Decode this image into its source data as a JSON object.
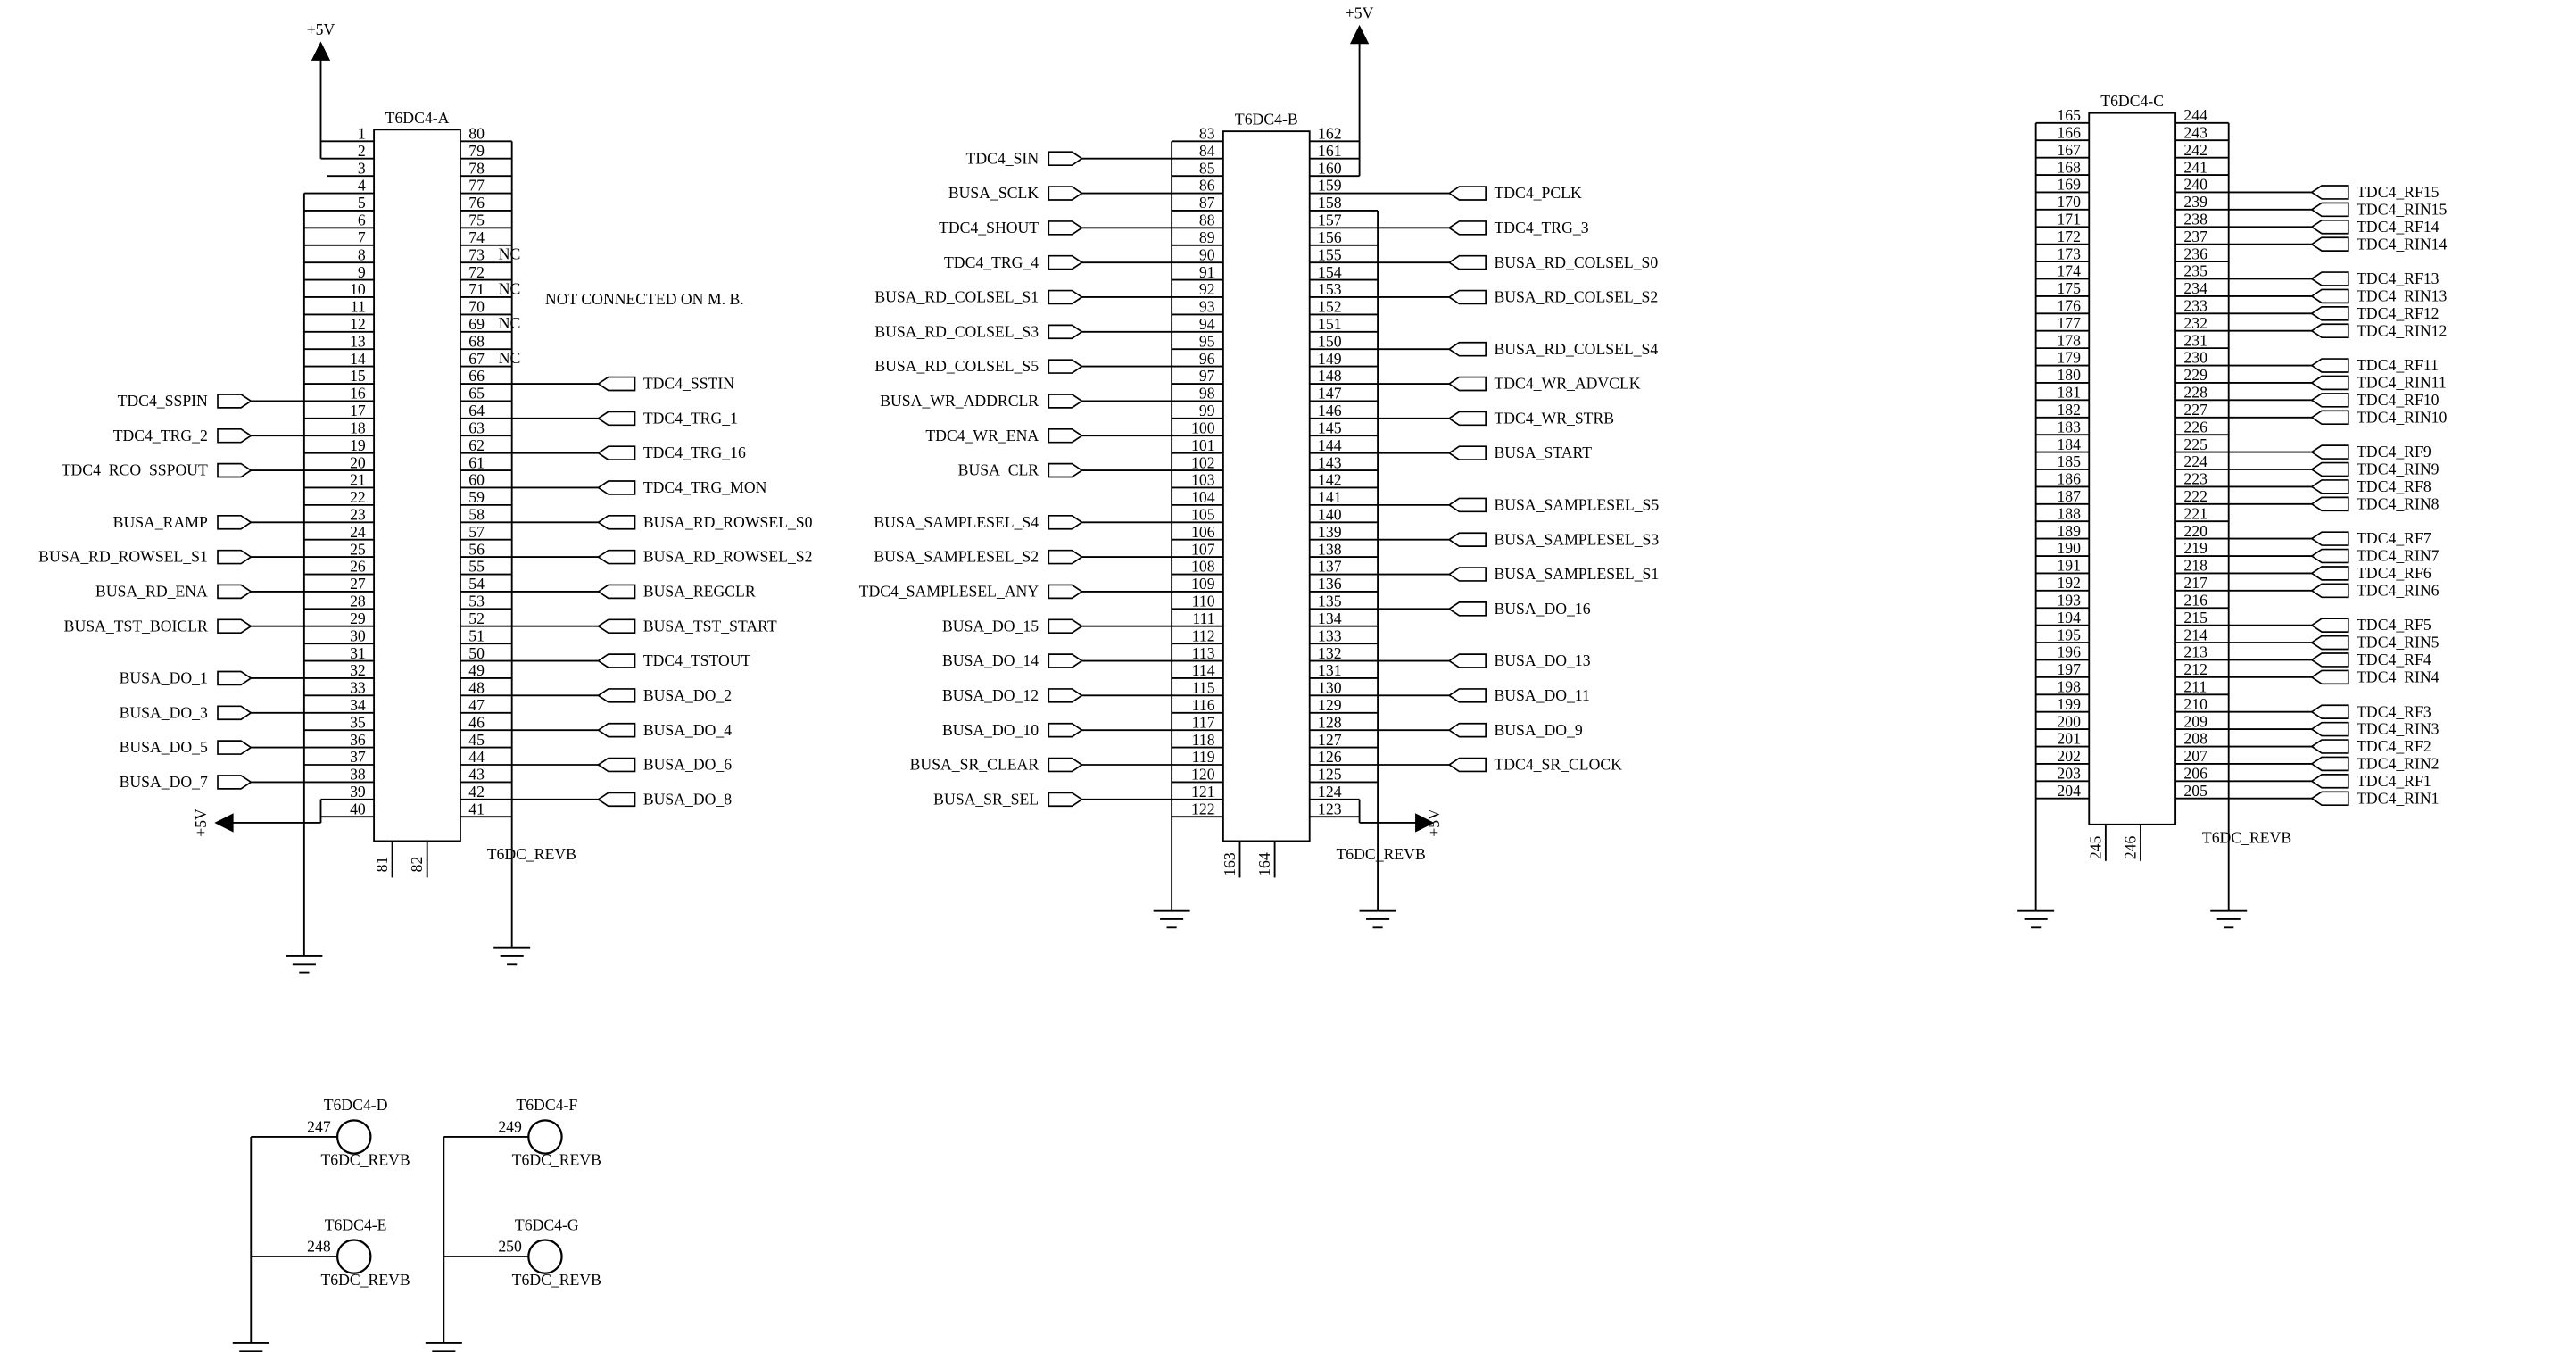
{
  "parts": [
    {
      "name": "T6DC4-A",
      "value": "T6DC_REVB",
      "left": [
        1,
        2,
        3,
        4,
        5,
        6,
        7,
        8,
        9,
        10,
        11,
        12,
        13,
        14,
        15,
        {
          "num": 16,
          "net": "TDC4_SSPIN"
        },
        17,
        {
          "num": 18,
          "net": "TDC4_TRG_2"
        },
        19,
        {
          "num": 20,
          "net": "TDC4_RCO_SSPOUT"
        },
        21,
        22,
        {
          "num": 23,
          "net": "BUSA_RAMP"
        },
        24,
        {
          "num": 25,
          "net": "BUSA_RD_ROWSEL_S1"
        },
        26,
        {
          "num": 27,
          "net": "BUSA_RD_ENA"
        },
        28,
        {
          "num": 29,
          "net": "BUSA_TST_BOICLR"
        },
        30,
        31,
        {
          "num": 32,
          "net": "BUSA_DO_1"
        },
        33,
        {
          "num": 34,
          "net": "BUSA_DO_3"
        },
        35,
        {
          "num": 36,
          "net": "BUSA_DO_5"
        },
        37,
        {
          "num": 38,
          "net": "BUSA_DO_7"
        },
        39,
        40
      ],
      "right": [
        80,
        79,
        78,
        77,
        76,
        75,
        74,
        73,
        72,
        71,
        70,
        69,
        68,
        67,
        {
          "num": 66,
          "net": "TDC4_SSTIN"
        },
        65,
        {
          "num": 64,
          "net": "TDC4_TRG_1"
        },
        63,
        {
          "num": 62,
          "net": "TDC4_TRG_16"
        },
        61,
        {
          "num": 60,
          "net": "TDC4_TRG_MON"
        },
        59,
        {
          "num": 58,
          "net": "BUSA_RD_ROWSEL_S0"
        },
        57,
        {
          "num": 56,
          "net": "BUSA_RD_ROWSEL_S2"
        },
        55,
        {
          "num": 54,
          "net": "BUSA_REGCLR"
        },
        53,
        {
          "num": 52,
          "net": "BUSA_TST_START"
        },
        51,
        {
          "num": 50,
          "net": "TDC4_TSTOUT"
        },
        49,
        {
          "num": 48,
          "net": "BUSA_DO_2"
        },
        47,
        {
          "num": 46,
          "net": "BUSA_DO_4"
        },
        45,
        {
          "num": 44,
          "net": "BUSA_DO_6"
        },
        43,
        {
          "num": 42,
          "net": "BUSA_DO_8"
        },
        41
      ],
      "bottom": [
        81,
        82
      ]
    },
    {
      "name": "T6DC4-B",
      "value": "T6DC_REVB",
      "left": [
        83,
        {
          "num": 84,
          "net": "TDC4_SIN"
        },
        85,
        {
          "num": 86,
          "net": "BUSA_SCLK"
        },
        87,
        {
          "num": 88,
          "net": "TDC4_SHOUT"
        },
        89,
        {
          "num": 90,
          "net": "TDC4_TRG_4"
        },
        91,
        {
          "num": 92,
          "net": "BUSA_RD_COLSEL_S1"
        },
        93,
        {
          "num": 94,
          "net": "BUSA_RD_COLSEL_S3"
        },
        95,
        {
          "num": 96,
          "net": "BUSA_RD_COLSEL_S5"
        },
        97,
        {
          "num": 98,
          "net": "BUSA_WR_ADDRCLR"
        },
        99,
        {
          "num": 100,
          "net": "TDC4_WR_ENA"
        },
        101,
        {
          "num": 102,
          "net": "BUSA_CLR"
        },
        103,
        104,
        {
          "num": 105,
          "net": "BUSA_SAMPLESEL_S4"
        },
        106,
        {
          "num": 107,
          "net": "BUSA_SAMPLESEL_S2"
        },
        108,
        {
          "num": 109,
          "net": "TDC4_SAMPLESEL_ANY"
        },
        110,
        {
          "num": 111,
          "net": "BUSA_DO_15"
        },
        112,
        {
          "num": 113,
          "net": "BUSA_DO_14"
        },
        114,
        {
          "num": 115,
          "net": "BUSA_DO_12"
        },
        116,
        {
          "num": 117,
          "net": "BUSA_DO_10"
        },
        118,
        {
          "num": 119,
          "net": "BUSA_SR_CLEAR"
        },
        120,
        {
          "num": 121,
          "net": "BUSA_SR_SEL"
        },
        122
      ],
      "right": [
        162,
        161,
        160,
        {
          "num": 159,
          "net": "TDC4_PCLK"
        },
        158,
        {
          "num": 157,
          "net": "TDC4_TRG_3"
        },
        156,
        {
          "num": 155,
          "net": "BUSA_RD_COLSEL_S0"
        },
        154,
        {
          "num": 153,
          "net": "BUSA_RD_COLSEL_S2"
        },
        152,
        151,
        {
          "num": 150,
          "net": "BUSA_RD_COLSEL_S4"
        },
        149,
        {
          "num": 148,
          "net": "TDC4_WR_ADVCLK"
        },
        147,
        {
          "num": 146,
          "net": "TDC4_WR_STRB"
        },
        145,
        {
          "num": 144,
          "net": "BUSA_START"
        },
        143,
        142,
        {
          "num": 141,
          "net": "BUSA_SAMPLESEL_S5"
        },
        140,
        {
          "num": 139,
          "net": "BUSA_SAMPLESEL_S3"
        },
        138,
        {
          "num": 137,
          "net": "BUSA_SAMPLESEL_S1"
        },
        136,
        {
          "num": 135,
          "net": "BUSA_DO_16"
        },
        134,
        133,
        {
          "num": 132,
          "net": "BUSA_DO_13"
        },
        131,
        {
          "num": 130,
          "net": "BUSA_DO_11"
        },
        129,
        {
          "num": 128,
          "net": "BUSA_DO_9"
        },
        127,
        {
          "num": 126,
          "net": "TDC4_SR_CLOCK"
        },
        125,
        124,
        123
      ],
      "bottom": [
        163,
        164
      ]
    },
    {
      "name": "T6DC4-C",
      "value": "T6DC_REVB",
      "left": [
        165,
        166,
        167,
        168,
        169,
        170,
        171,
        172,
        173,
        174,
        175,
        176,
        177,
        178,
        179,
        180,
        181,
        182,
        183,
        184,
        185,
        186,
        187,
        188,
        189,
        190,
        191,
        192,
        193,
        194,
        195,
        196,
        197,
        198,
        199,
        200,
        201,
        202,
        203,
        204
      ],
      "right": [
        244,
        243,
        242,
        241,
        {
          "num": 240,
          "net": "TDC4_RF15"
        },
        {
          "num": 239,
          "net": "TDC4_RIN15"
        },
        {
          "num": 238,
          "net": "TDC4_RF14"
        },
        {
          "num": 237,
          "net": "TDC4_RIN14"
        },
        236,
        {
          "num": 235,
          "net": "TDC4_RF13"
        },
        {
          "num": 234,
          "net": "TDC4_RIN13"
        },
        {
          "num": 233,
          "net": "TDC4_RF12"
        },
        {
          "num": 232,
          "net": "TDC4_RIN12"
        },
        231,
        {
          "num": 230,
          "net": "TDC4_RF11"
        },
        {
          "num": 229,
          "net": "TDC4_RIN11"
        },
        {
          "num": 228,
          "net": "TDC4_RF10"
        },
        {
          "num": 227,
          "net": "TDC4_RIN10"
        },
        226,
        {
          "num": 225,
          "net": "TDC4_RF9"
        },
        {
          "num": 224,
          "net": "TDC4_RIN9"
        },
        {
          "num": 223,
          "net": "TDC4_RF8"
        },
        {
          "num": 222,
          "net": "TDC4_RIN8"
        },
        221,
        {
          "num": 220,
          "net": "TDC4_RF7"
        },
        {
          "num": 219,
          "net": "TDC4_RIN7"
        },
        {
          "num": 218,
          "net": "TDC4_RF6"
        },
        {
          "num": 217,
          "net": "TDC4_RIN6"
        },
        216,
        {
          "num": 215,
          "net": "TDC4_RF5"
        },
        {
          "num": 214,
          "net": "TDC4_RIN5"
        },
        {
          "num": 213,
          "net": "TDC4_RF4"
        },
        {
          "num": 212,
          "net": "TDC4_RIN4"
        },
        211,
        {
          "num": 210,
          "net": "TDC4_RF3"
        },
        {
          "num": 209,
          "net": "TDC4_RIN3"
        },
        {
          "num": 208,
          "net": "TDC4_RF2"
        },
        {
          "num": 207,
          "net": "TDC4_RIN2"
        },
        {
          "num": 206,
          "net": "TDC4_RF1"
        },
        {
          "num": 205,
          "net": "TDC4_RIN1"
        }
      ],
      "bottom": [
        245,
        246
      ]
    }
  ],
  "small_parts": [
    {
      "name": "T6DC4-D",
      "pin": 247,
      "value": "T6DC_REVB"
    },
    {
      "name": "T6DC4-E",
      "pin": 248,
      "value": "T6DC_REVB"
    },
    {
      "name": "T6DC4-F",
      "pin": 249,
      "value": "T6DC_REVB"
    },
    {
      "name": "T6DC4-G",
      "pin": 250,
      "value": "T6DC_REVB"
    }
  ],
  "power": [
    "+5V",
    "+5V",
    "+5V",
    "+5V"
  ],
  "nc_labels": [
    "NC",
    "NC",
    "NC",
    "NC"
  ],
  "note": "NOT CONNECTED ON M. B."
}
